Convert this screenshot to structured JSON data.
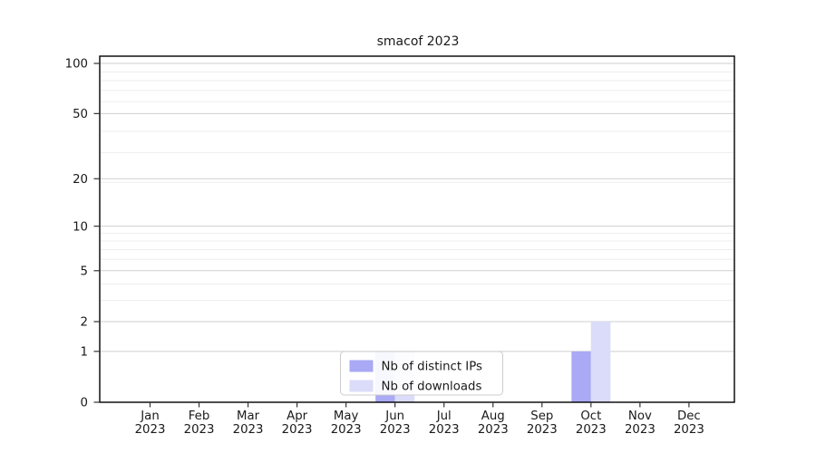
{
  "figure": {
    "background": "#ffffff"
  },
  "chart_data": {
    "type": "bar",
    "title": "smacof 2023",
    "categories": [
      "Jan",
      "Feb",
      "Mar",
      "Apr",
      "May",
      "Jun",
      "Jul",
      "Aug",
      "Sep",
      "Oct",
      "Nov",
      "Dec"
    ],
    "year_label": "2023",
    "series": [
      {
        "name": "Nb of distinct IPs",
        "color": "#a9a9f5",
        "values": [
          0,
          0,
          0,
          0,
          0,
          1,
          0,
          0,
          0,
          1,
          0,
          0
        ]
      },
      {
        "name": "Nb of downloads",
        "color": "#dbdbfa",
        "values": [
          0,
          0,
          0,
          0,
          0,
          1,
          0,
          0,
          0,
          2,
          0,
          0
        ]
      }
    ],
    "y_ticks": [
      0,
      1,
      2,
      5,
      10,
      20,
      50,
      100
    ],
    "minor_gridlines_value_plus1": [
      4,
      5,
      7,
      8,
      9,
      10,
      20,
      30,
      40,
      60,
      70,
      80,
      90
    ],
    "scale": "log1p",
    "ylim": [
      0,
      110
    ],
    "xlabel": "",
    "ylabel": "",
    "grid": true,
    "legend": {
      "labels": [
        "Nb of distinct IPs",
        "Nb of downloads"
      ],
      "position": "lower center"
    },
    "colors": {
      "major_grid": "#cfcfcf",
      "minor_grid": "#ededed",
      "axis": "#000000",
      "tick": "#333333",
      "text": "#1a1a1a",
      "legend_border": "#cccccc",
      "legend_background": "#ffffff"
    }
  }
}
